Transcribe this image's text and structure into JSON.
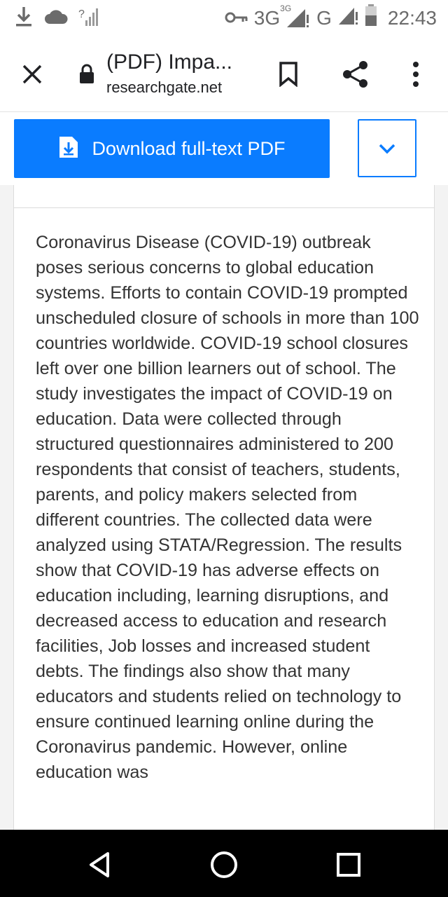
{
  "status_bar": {
    "network_3g": "3G",
    "network_3g_sup": "3G",
    "network_g": "G",
    "time": "22:43"
  },
  "toolbar": {
    "title": "(PDF) Impa...",
    "url": "researchgate.net"
  },
  "download": {
    "label": "Download full-text PDF"
  },
  "abstract": {
    "text": "Coronavirus Disease (COVID-19) outbreak poses serious concerns to global education systems. Efforts to contain COVID-19 prompted unscheduled closure of schools in more than 100 countries worldwide. COVID-19 school closures left over one billion learners out of school. The study investigates the impact of COVID-19 on education. Data were collected through structured questionnaires administered to 200 respondents that consist of teachers, students, parents, and policy makers selected from different countries. The collected data were analyzed using STATA/Regression. The results show that COVID-19 has adverse effects on education including, learning disruptions, and decreased access to education and research facilities, Job losses and increased student debts. The findings also show that many educators and students relied on technology to ensure continued learning online during the Coronavirus pandemic. However, online education was"
  },
  "colors": {
    "accent": "#0a7cff",
    "text": "#333333",
    "nav_bg": "#000000"
  },
  "icons": {
    "status_left": [
      "download-icon",
      "cloud-icon",
      "no-signal-icon"
    ],
    "status_right": [
      "vpn-key-icon",
      "signal-icon",
      "battery-icon"
    ],
    "toolbar": [
      "close-icon",
      "lock-icon",
      "bookmark-icon",
      "share-icon",
      "more-vert-icon"
    ],
    "download": [
      "pdf-download-icon",
      "chevron-down-icon"
    ],
    "nav": [
      "back-triangle-icon",
      "home-circle-icon",
      "recents-square-icon"
    ]
  }
}
